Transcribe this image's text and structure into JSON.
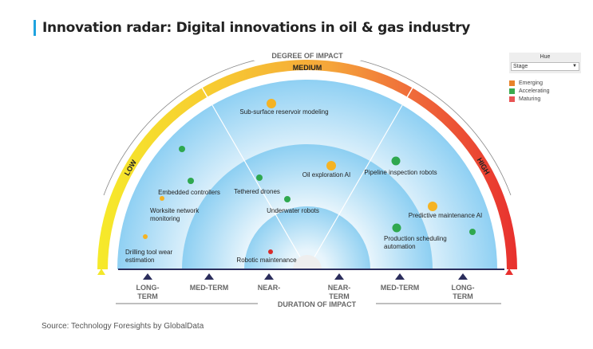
{
  "title": "Innovation radar: Digital innovations in oil & gas industry",
  "source": "Source: Technology Foresights by GlobalData",
  "degree_label": "DEGREE OF IMPACT",
  "duration_label": "DURATION OF IMPACT",
  "impact_levels": {
    "low": "LOW",
    "medium": "MEDIUM",
    "high": "HIGH"
  },
  "duration_ticks": [
    {
      "l1": "LONG-",
      "l2": "TERM"
    },
    {
      "l1": "MED-TERM",
      "l2": ""
    },
    {
      "l1": "NEAR-",
      "l2": ""
    },
    {
      "l1": "NEAR-",
      "l2": "TERM"
    },
    {
      "l1": "MED-TERM",
      "l2": ""
    },
    {
      "l1": "LONG-",
      "l2": "TERM"
    }
  ],
  "legend": {
    "header": "Hue",
    "selected": "Stage",
    "items": [
      {
        "label": "Emerging",
        "color": "#e8822a"
      },
      {
        "label": "Accelerating",
        "color": "#3aaa4e"
      },
      {
        "label": "Maturing",
        "color": "#e85454"
      }
    ]
  },
  "innovations": [
    {
      "label": "Sub-surface reservoir modeling",
      "stage": "Emerging"
    },
    {
      "label": "Embedded controllers",
      "stage": "Accelerating"
    },
    {
      "label": "Worksite network monitoring",
      "stage": "Emerging"
    },
    {
      "label": "Drilling tool wear estimation",
      "stage": "Emerging"
    },
    {
      "label": "Tethered drones",
      "stage": "Accelerating"
    },
    {
      "label": "Underwater robots",
      "stage": "Accelerating"
    },
    {
      "label": "Oil exploration AI",
      "stage": "Emerging"
    },
    {
      "label": "Pipeline inspection robots",
      "stage": "Accelerating"
    },
    {
      "label": "Predictive maintenance AI",
      "stage": "Emerging"
    },
    {
      "label": "Production scheduling automation",
      "stage": "Accelerating"
    },
    {
      "label": "Robotic maintenance",
      "stage": "Maturing"
    }
  ],
  "text": {
    "worksite1": "Worksite network",
    "worksite2": "monitoring",
    "drilling1": "Drilling tool wear",
    "drilling2": "estimation",
    "production1": "Production scheduling",
    "production2": "automation"
  }
}
